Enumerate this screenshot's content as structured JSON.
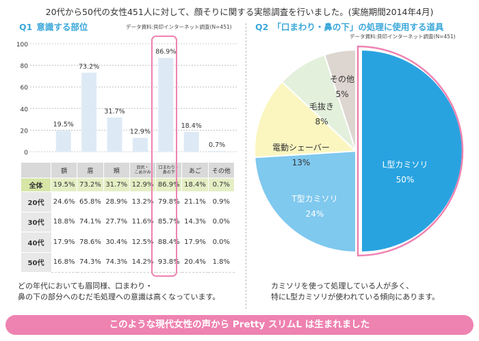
{
  "header": "20代から50代の女性451人に対して、顔そりに関する実態調査を行いました。(実施期間2014年4月)",
  "q1": {
    "num": "Q1",
    "title": "意識する部位",
    "source": "データ資料:貝印インターネット調査(N=451)"
  },
  "q2": {
    "num": "Q2",
    "title": "「口まわり・鼻の下」の処理に使用する道具",
    "source": "データ資料:貝印インターネット調査(N=451)"
  },
  "chart_data": [
    {
      "type": "bar",
      "categories": [
        "額",
        "眉",
        "頬",
        "目尻・こめかみ",
        "口まわり・鼻の下",
        "あご",
        "その他"
      ],
      "values": [
        19.5,
        73.2,
        31.7,
        12.9,
        86.9,
        18.4,
        0.7
      ],
      "value_labels": [
        "19.5%",
        "73.2%",
        "31.7%",
        "12.9%",
        "86.9%",
        "18.4%",
        "0.7%"
      ],
      "ylim": [
        0,
        100
      ],
      "yticks": [
        "0",
        "20",
        "40",
        "60",
        "80",
        "100"
      ],
      "bar_color": "#ddeaf6"
    },
    {
      "type": "table",
      "columns": [
        "",
        "額",
        "眉",
        "頬",
        "目尻・こめかみ",
        "口まわり・鼻の下",
        "あご",
        "その他"
      ],
      "rows": [
        {
          "label": "全体",
          "values": [
            "19.5%",
            "73.2%",
            "31.7%",
            "12.9%",
            "86.9%",
            "18.4%",
            "0.7%"
          ]
        },
        {
          "label": "20代",
          "values": [
            "24.6%",
            "65.8%",
            "28.9%",
            "13.2%",
            "79.8%",
            "21.1%",
            "0.9%"
          ]
        },
        {
          "label": "30代",
          "values": [
            "18.8%",
            "74.1%",
            "27.7%",
            "11.6%",
            "85.7%",
            "14.3%",
            "0.0%"
          ]
        },
        {
          "label": "40代",
          "values": [
            "17.9%",
            "78.6%",
            "30.4%",
            "12.5%",
            "88.4%",
            "17.9%",
            "0.0%"
          ]
        },
        {
          "label": "50代",
          "values": [
            "16.8%",
            "74.3%",
            "74.3%",
            "14.2%",
            "93.8%",
            "20.4%",
            "1.8%"
          ]
        }
      ]
    },
    {
      "type": "pie",
      "slices": [
        {
          "label": "L型カミソリ",
          "pct_label": "50%",
          "value": 50,
          "color": "#29a3e0"
        },
        {
          "label": "T型カミソリ",
          "pct_label": "24%",
          "value": 24,
          "color": "#7fc8ee"
        },
        {
          "label": "電動シェーバー",
          "pct_label": "13%",
          "value": 13,
          "color": "#fbf6c0"
        },
        {
          "label": "毛抜き",
          "pct_label": "8%",
          "value": 8,
          "color": "#e3f0dc"
        },
        {
          "label": "その他",
          "pct_label": "5%",
          "value": 5,
          "color": "#ddd6d0"
        }
      ],
      "highlight_color": "#ee82b0"
    }
  ],
  "comment_left": [
    "どの年代においても眉同様、口まわり・",
    "鼻の下の部分へのむだ毛処理への意識は高くなっています。"
  ],
  "comment_right": [
    "カミソリを使って処理している人が多く、",
    "特にL型カミソリが使われている傾向にあります。"
  ],
  "banner": "このような現代女性の声から Pretty スリムL は生まれました"
}
